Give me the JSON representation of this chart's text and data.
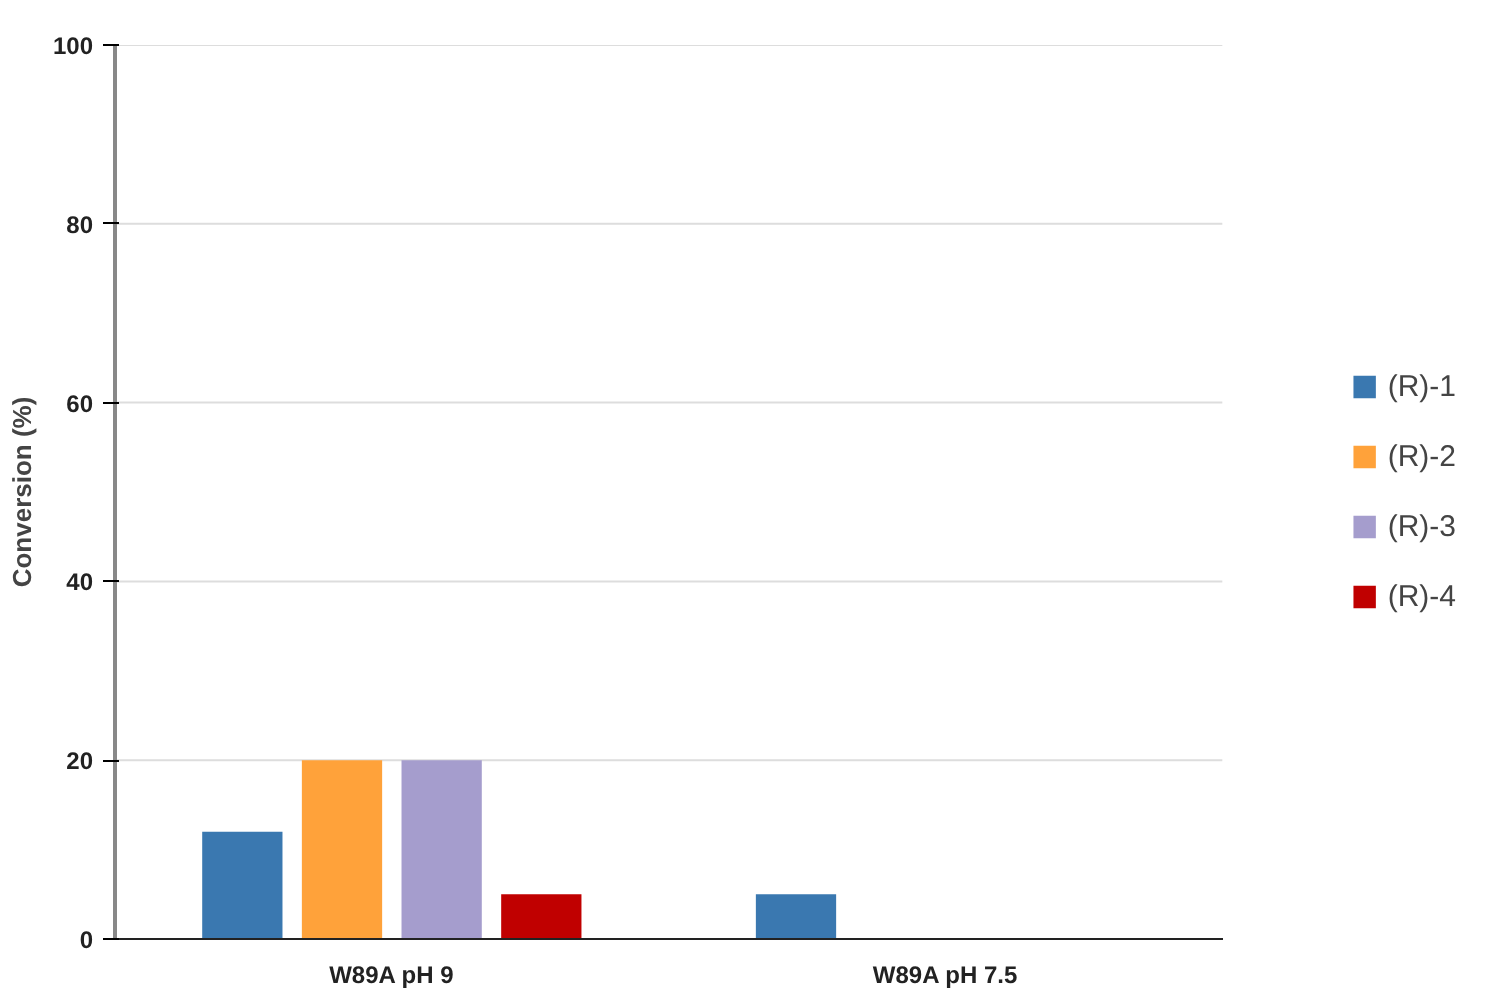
{
  "chart_data": {
    "type": "bar",
    "ylabel": "Conversion (%)",
    "categories": [
      "W89A pH 9",
      "W89A pH 7.5"
    ],
    "series": [
      {
        "name": "(R)-1",
        "color": "#3a78b0",
        "values": [
          12,
          5
        ]
      },
      {
        "name": "(R)-2",
        "color": "#ffa23a",
        "values": [
          20,
          0
        ]
      },
      {
        "name": "(R)-3",
        "color": "#a59dcd",
        "values": [
          20,
          0
        ]
      },
      {
        "name": "(R)-4",
        "color": "#c00000",
        "values": [
          5,
          0
        ]
      }
    ],
    "ylim": [
      0,
      100
    ],
    "yticks": [
      0,
      20,
      40,
      60,
      80,
      100
    ],
    "grid": "y",
    "legend": "right"
  }
}
